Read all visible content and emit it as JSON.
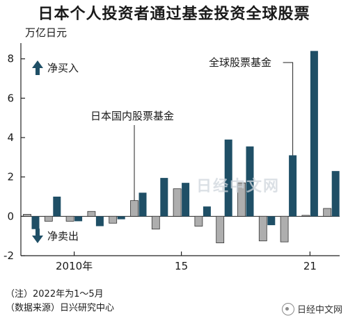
{
  "chart_data": {
    "type": "bar",
    "title": "日本个人投资者通过基金投资全球股票",
    "unit_label": "万亿日元",
    "x_tick_labels": [
      {
        "label": "2010年",
        "x": 2010
      },
      {
        "label": "15",
        "x": 2015
      },
      {
        "label": "21",
        "x": 2021
      }
    ],
    "ylim": [
      -2,
      8.8
    ],
    "yticks": [
      8,
      6,
      4,
      2,
      0,
      -2
    ],
    "grid": false,
    "categories": [
      2008,
      2009,
      2010,
      2011,
      2012,
      2013,
      2014,
      2015,
      2016,
      2017,
      2018,
      2019,
      2020,
      2021,
      2022
    ],
    "series": [
      {
        "name": "日本国内股票基金",
        "color": "#aeaeae",
        "values": [
          0.1,
          -0.25,
          -0.25,
          0.25,
          -0.35,
          0.8,
          -0.65,
          1.4,
          -0.5,
          -1.35,
          1.7,
          -1.25,
          -1.3,
          0.05,
          0.4
        ]
      },
      {
        "name": "全球股票基金",
        "color": "#1f4f66",
        "values": [
          -0.65,
          1.0,
          -0.25,
          -0.5,
          -0.15,
          1.2,
          1.95,
          1.7,
          0.5,
          3.9,
          3.55,
          -0.45,
          3.1,
          8.4,
          2.3
        ]
      }
    ],
    "annotations": {
      "inflow": "净买入",
      "outflow": "净卖出"
    }
  },
  "watermark": "日经中文网",
  "notes": [
    "（注）2022年为1～5月",
    "（数据来源）日兴研究中心"
  ],
  "logo_text": "日经中文网",
  "colors": {
    "domestic": "#aeaeae",
    "global": "#1f4f66",
    "arrow": "#1f4f66",
    "axis": "#222222"
  }
}
